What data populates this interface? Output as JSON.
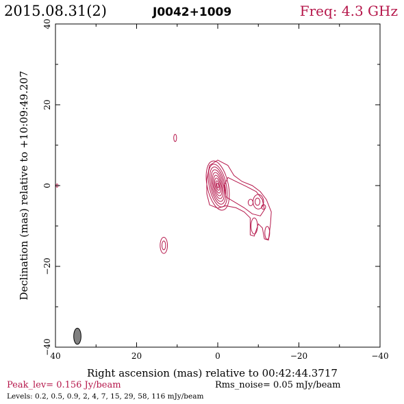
{
  "header": {
    "date": "2015.08.31(2)",
    "source": "J0042+1009",
    "freq": "Freq: 4.3 GHz"
  },
  "footer": {
    "peak": "Peak_lev=  0.156 Jy/beam",
    "rms": "Rms_noise= 0.05 mJy/beam",
    "levels": "Levels: 0.2,  0.5,  0.9,    2,    4,    7,   15,   29,   58, 116 mJy/beam"
  },
  "colors": {
    "contour": "#b5164a",
    "axis": "#000000",
    "beam": "#808080"
  },
  "chart_data": {
    "type": "contour",
    "xlabel": "Right ascension (mas) relative to 00:42:44.3717",
    "ylabel": "Declination (mas) relative to +10:09:49.207",
    "xlim": [
      40,
      -40
    ],
    "ylim": [
      -40,
      40
    ],
    "xticks": [
      40,
      20,
      0,
      -20,
      -40
    ],
    "yticks": [
      -40,
      -20,
      0,
      20,
      40
    ],
    "xtick_labels": [
      "40",
      "20",
      "0",
      "−20",
      "−40"
    ],
    "ytick_labels": [
      "−40",
      "−20",
      "0",
      "20",
      "40"
    ],
    "core": {
      "x": 0,
      "y": 0,
      "contours": [
        {
          "rx": 2.6,
          "ry": 6.2
        },
        {
          "rx": 2.1,
          "ry": 5.4
        },
        {
          "rx": 1.75,
          "ry": 4.7
        },
        {
          "rx": 1.45,
          "ry": 4.0
        },
        {
          "rx": 1.15,
          "ry": 3.3
        },
        {
          "rx": 0.9,
          "ry": 2.6
        },
        {
          "rx": 0.65,
          "ry": 1.9
        },
        {
          "rx": 0.4,
          "ry": 1.2
        },
        {
          "rx": 0.2,
          "ry": 0.6
        }
      ]
    },
    "components": [
      {
        "x": 10.5,
        "y": 11.8,
        "rx": 0.35,
        "ry": 0.9
      },
      {
        "x": 13.3,
        "y": -14.8,
        "rx": 0.9,
        "ry": 2.0
      },
      {
        "x": 13.3,
        "y": -14.8,
        "rx": 0.45,
        "ry": 1.1
      },
      {
        "x": 39.6,
        "y": 0.0,
        "rx": 0.25,
        "ry": 0.4
      },
      {
        "x": -10.0,
        "y": -4.0,
        "rx": 1.3,
        "ry": 1.8
      },
      {
        "x": -9.8,
        "y": -4.0,
        "rx": 0.6,
        "ry": 0.9
      },
      {
        "x": -8.1,
        "y": -4.2,
        "rx": 0.6,
        "ry": 0.8
      },
      {
        "x": -11.3,
        "y": -5.3,
        "rx": 0.5,
        "ry": 0.6
      },
      {
        "x": -9.0,
        "y": -10.0,
        "rx": 0.8,
        "ry": 2.0
      },
      {
        "x": -12.2,
        "y": -11.7,
        "rx": 0.6,
        "ry": 1.6
      }
    ],
    "jet_outline": [
      [
        2.0,
        5.0
      ],
      [
        0.0,
        6.3
      ],
      [
        -2.5,
        5.0
      ],
      [
        -4.0,
        2.5
      ],
      [
        -6.0,
        1.0
      ],
      [
        -8.5,
        0.0
      ],
      [
        -10.5,
        -1.5
      ],
      [
        -12.0,
        -3.5
      ],
      [
        -13.2,
        -6.5
      ],
      [
        -13.0,
        -9.5
      ],
      [
        -12.5,
        -13.5
      ],
      [
        -11.5,
        -13.2
      ],
      [
        -11.0,
        -10.5
      ],
      [
        -10.0,
        -9.5
      ],
      [
        -9.0,
        -12.5
      ],
      [
        -8.0,
        -12.2
      ],
      [
        -8.0,
        -8.0
      ],
      [
        -6.5,
        -6.5
      ],
      [
        -4.5,
        -5.5
      ],
      [
        -2.0,
        -5.0
      ],
      [
        0.0,
        -5.6
      ],
      [
        2.0,
        -4.8
      ],
      [
        2.7,
        -2.0
      ],
      [
        2.7,
        1.5
      ]
    ],
    "jet_inner": [
      [
        -2.5,
        2.0
      ],
      [
        -4.5,
        1.0
      ],
      [
        -7.0,
        -0.2
      ],
      [
        -9.5,
        -1.5
      ],
      [
        -11.0,
        -3.5
      ],
      [
        -11.5,
        -6.0
      ],
      [
        -10.5,
        -7.5
      ],
      [
        -8.5,
        -7.0
      ],
      [
        -6.5,
        -5.5
      ],
      [
        -4.0,
        -4.0
      ],
      [
        -2.0,
        -2.8
      ],
      [
        -1.6,
        0.0
      ]
    ],
    "beam": {
      "x": 34.6,
      "y": -37.3,
      "rx": 0.9,
      "ry": 2.0
    }
  }
}
